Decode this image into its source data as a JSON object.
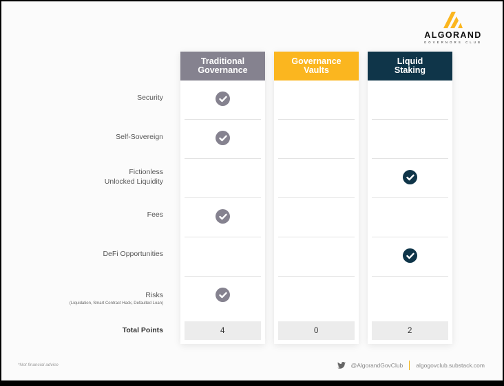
{
  "brand": {
    "name": "ALGORAND",
    "tagline": "GOVERNORS CLUB",
    "accent": "#fbb61f"
  },
  "columns": [
    {
      "label": "Traditional\nGovernance",
      "color": "#85828f",
      "checks": [
        true,
        true,
        false,
        true,
        false,
        true
      ],
      "total": "4"
    },
    {
      "label": "Governance\nVaults",
      "color": "#fbb61f",
      "checks": [
        false,
        false,
        false,
        false,
        false,
        false
      ],
      "total": "0"
    },
    {
      "label": "Liquid\nStaking",
      "color": "#0f3549",
      "checks": [
        false,
        false,
        true,
        false,
        true,
        false
      ],
      "total": "2"
    }
  ],
  "rows": [
    {
      "label": "Security"
    },
    {
      "label": "Self-Sovereign"
    },
    {
      "label_line1": "Fictionless",
      "label_line2": "Unlocked Liquidity"
    },
    {
      "label": "Fees"
    },
    {
      "label": "DeFi Opportunities"
    },
    {
      "label": "Risks",
      "sub": "(Liquidation, Smart Contract Hack, Defaulted Loan)"
    }
  ],
  "total_label": "Total Points",
  "footer": {
    "disclaimer": "*Not financial advice",
    "twitter": "@AlgorandGovClub",
    "site": "algogovclub.substack.com"
  },
  "icons": {
    "check": "check-circle-icon",
    "twitter": "twitter-bird-icon",
    "logo": "algorand-logo-icon"
  }
}
